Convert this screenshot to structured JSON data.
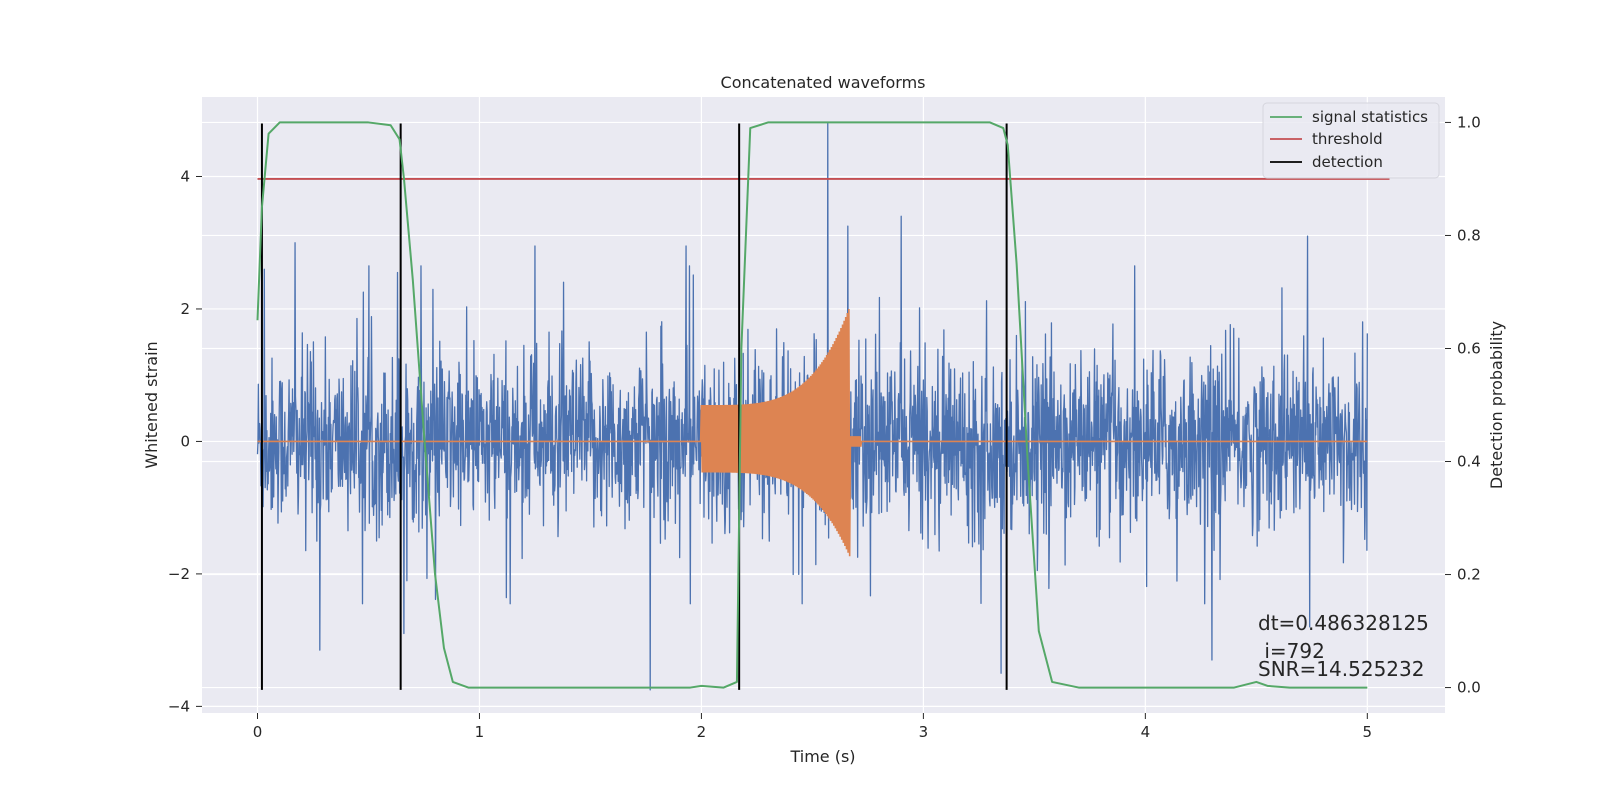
{
  "chart_data": {
    "type": "line",
    "title": "Concatenated waveforms",
    "xlabel": "Time (s)",
    "ylabel": "Whitened strain",
    "y2label": "Detection probability",
    "xlim": [
      -0.25,
      5.35
    ],
    "ylim": [
      -4.1,
      5.2
    ],
    "y2lim": [
      -0.045,
      1.045
    ],
    "x_ticks": [
      0,
      1,
      2,
      3,
      4,
      5
    ],
    "y_ticks": [
      -4,
      -2,
      0,
      2,
      4
    ],
    "y2_ticks": [
      0.0,
      0.2,
      0.4,
      0.6,
      0.8,
      1.0
    ],
    "x_tick_labels": [
      "0",
      "1",
      "2",
      "3",
      "4",
      "5"
    ],
    "y_tick_labels": [
      "−4",
      "−2",
      "0",
      "2",
      "4"
    ],
    "y2_tick_labels": [
      "0.0",
      "0.2",
      "0.4",
      "0.6",
      "0.8",
      "1.0"
    ],
    "grid": true,
    "legend_position": "top-right",
    "colors": {
      "strain": "#4c72b0",
      "waveform": "#dd8452",
      "signal_statistics": "#55a868",
      "threshold": "#c44e52",
      "detection": "#000000",
      "background": "#eaeaf2",
      "grid": "#ffffff"
    },
    "series": [
      {
        "name": "signal statistics",
        "axis": "right",
        "x": [
          0.0,
          0.02,
          0.05,
          0.1,
          0.2,
          0.5,
          0.6,
          0.64,
          0.66,
          0.7,
          0.75,
          0.8,
          0.84,
          0.88,
          0.95,
          1.5,
          1.95,
          2.0,
          2.1,
          2.16,
          2.18,
          2.22,
          2.3,
          2.6,
          3.3,
          3.36,
          3.38,
          3.42,
          3.47,
          3.52,
          3.58,
          3.7,
          4.4,
          4.5,
          4.55,
          4.65,
          5.0
        ],
        "y": [
          0.65,
          0.85,
          0.98,
          1.0,
          1.0,
          1.0,
          0.995,
          0.97,
          0.9,
          0.72,
          0.45,
          0.2,
          0.07,
          0.01,
          0.0,
          0.0,
          0.0,
          0.003,
          0.0,
          0.01,
          0.6,
          0.99,
          1.0,
          1.0,
          1.0,
          0.99,
          0.96,
          0.75,
          0.4,
          0.1,
          0.01,
          0.0,
          0.0,
          0.01,
          0.003,
          0.0,
          0.0
        ]
      },
      {
        "name": "threshold",
        "axis": "right",
        "x": [
          0.0,
          5.1
        ],
        "y": [
          0.9,
          0.9
        ]
      },
      {
        "name": "detection",
        "axis": "left",
        "x": [
          0.02,
          0.645,
          2.17,
          3.375
        ],
        "ymin": -3.75,
        "ymax": 4.8
      }
    ],
    "strain_noise": {
      "x_range": [
        0.0,
        5.0
      ],
      "typical_range": [
        -1.8,
        2.0
      ],
      "peak_max": 4.8,
      "peak_min": -3.75,
      "peaks": [
        {
          "x": 0.03,
          "y": 2.6
        },
        {
          "x": 0.17,
          "y": 3.0
        },
        {
          "x": 0.28,
          "y": -3.15
        },
        {
          "x": 0.63,
          "y": 2.55
        },
        {
          "x": 0.66,
          "y": -2.9
        },
        {
          "x": 1.25,
          "y": 2.95
        },
        {
          "x": 1.77,
          "y": -3.75
        },
        {
          "x": 1.93,
          "y": 2.95
        },
        {
          "x": 2.57,
          "y": 4.8
        },
        {
          "x": 2.66,
          "y": 3.25
        },
        {
          "x": 2.9,
          "y": 3.4
        },
        {
          "x": 3.35,
          "y": -3.5
        },
        {
          "x": 4.3,
          "y": -3.3
        },
        {
          "x": 4.73,
          "y": 3.1
        },
        {
          "x": 4.74,
          "y": -2.8
        }
      ]
    },
    "injected_waveform": {
      "x_start": 2.0,
      "x_end": 2.67,
      "start_amplitude": 0.55,
      "peak_amplitude": 2.05,
      "min_amplitude": -1.75
    },
    "legend": [
      {
        "label": "signal statistics",
        "color": "#55a868"
      },
      {
        "label": "threshold",
        "color": "#c44e52"
      },
      {
        "label": "detection",
        "color": "#000000"
      }
    ],
    "annotations": [
      "dt=0.486328125",
      " i=792",
      "SNR=14.525232"
    ]
  }
}
